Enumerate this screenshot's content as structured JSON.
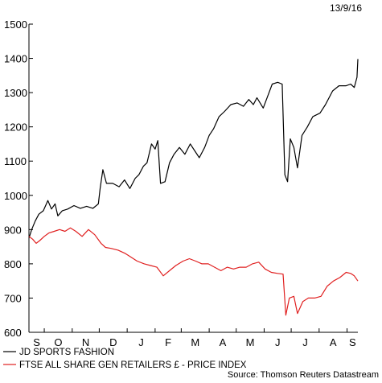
{
  "chart_data": {
    "type": "line",
    "date_label": "13/9/16",
    "source": "Source: Thomson Reuters Datastream",
    "ylim": [
      600,
      1500
    ],
    "y_ticks": [
      600,
      700,
      800,
      900,
      1000,
      1100,
      1200,
      1300,
      1400,
      1500
    ],
    "x_tick_labels": [
      "S",
      "O",
      "N",
      "D",
      "J",
      "F",
      "M",
      "A",
      "M",
      "J",
      "J",
      "A",
      "S"
    ],
    "grid": false,
    "legend_position": "bottom-left",
    "colors": {
      "series_1": "#000000",
      "series_2": "#e02020",
      "axis": "#000000"
    },
    "x_start": "2015-09-14",
    "x_end": "2016-09-13",
    "series": [
      {
        "name": "JD SPORTS FASHION",
        "points": [
          [
            "2015-09-14",
            875
          ],
          [
            "2015-09-17",
            900
          ],
          [
            "2015-09-21",
            925
          ],
          [
            "2015-09-25",
            945
          ],
          [
            "2015-09-30",
            955
          ],
          [
            "2015-10-05",
            985
          ],
          [
            "2015-10-09",
            960
          ],
          [
            "2015-10-13",
            975
          ],
          [
            "2015-10-16",
            940
          ],
          [
            "2015-10-21",
            955
          ],
          [
            "2015-10-27",
            960
          ],
          [
            "2015-11-03",
            970
          ],
          [
            "2015-11-10",
            962
          ],
          [
            "2015-11-17",
            968
          ],
          [
            "2015-11-24",
            962
          ],
          [
            "2015-11-30",
            975
          ],
          [
            "2015-12-02",
            1020
          ],
          [
            "2015-12-05",
            1075
          ],
          [
            "2015-12-09",
            1035
          ],
          [
            "2015-12-16",
            1035
          ],
          [
            "2015-12-23",
            1025
          ],
          [
            "2015-12-29",
            1045
          ],
          [
            "2016-01-04",
            1020
          ],
          [
            "2016-01-10",
            1050
          ],
          [
            "2016-01-14",
            1060
          ],
          [
            "2016-01-19",
            1085
          ],
          [
            "2016-01-23",
            1095
          ],
          [
            "2016-01-28",
            1150
          ],
          [
            "2016-02-01",
            1135
          ],
          [
            "2016-02-04",
            1160
          ],
          [
            "2016-02-07",
            1035
          ],
          [
            "2016-02-12",
            1040
          ],
          [
            "2016-02-17",
            1095
          ],
          [
            "2016-02-22",
            1120
          ],
          [
            "2016-02-28",
            1140
          ],
          [
            "2016-03-05",
            1120
          ],
          [
            "2016-03-11",
            1150
          ],
          [
            "2016-03-16",
            1130
          ],
          [
            "2016-03-21",
            1110
          ],
          [
            "2016-03-27",
            1140
          ],
          [
            "2016-04-01",
            1175
          ],
          [
            "2016-04-06",
            1195
          ],
          [
            "2016-04-12",
            1230
          ],
          [
            "2016-04-18",
            1245
          ],
          [
            "2016-04-25",
            1265
          ],
          [
            "2016-05-02",
            1270
          ],
          [
            "2016-05-09",
            1260
          ],
          [
            "2016-05-15",
            1280
          ],
          [
            "2016-05-20",
            1265
          ],
          [
            "2016-05-24",
            1285
          ],
          [
            "2016-05-31",
            1255
          ],
          [
            "2016-06-05",
            1290
          ],
          [
            "2016-06-10",
            1325
          ],
          [
            "2016-06-16",
            1330
          ],
          [
            "2016-06-21",
            1325
          ],
          [
            "2016-06-24",
            1060
          ],
          [
            "2016-06-27",
            1040
          ],
          [
            "2016-06-30",
            1165
          ],
          [
            "2016-07-04",
            1140
          ],
          [
            "2016-07-08",
            1080
          ],
          [
            "2016-07-13",
            1175
          ],
          [
            "2016-07-19",
            1200
          ],
          [
            "2016-07-25",
            1230
          ],
          [
            "2016-08-02",
            1240
          ],
          [
            "2016-08-08",
            1265
          ],
          [
            "2016-08-16",
            1305
          ],
          [
            "2016-08-23",
            1320
          ],
          [
            "2016-08-31",
            1320
          ],
          [
            "2016-09-05",
            1325
          ],
          [
            "2016-09-09",
            1315
          ],
          [
            "2016-09-12",
            1345
          ],
          [
            "2016-09-13",
            1398
          ]
        ]
      },
      {
        "name": "FTSE ALL SHARE GEN RETAILERS £ - PRICE INDEX",
        "points": [
          [
            "2015-09-14",
            880
          ],
          [
            "2015-09-18",
            872
          ],
          [
            "2015-09-22",
            860
          ],
          [
            "2015-09-26",
            868
          ],
          [
            "2015-10-01",
            880
          ],
          [
            "2015-10-06",
            890
          ],
          [
            "2015-10-12",
            895
          ],
          [
            "2015-10-18",
            900
          ],
          [
            "2015-10-24",
            895
          ],
          [
            "2015-10-30",
            905
          ],
          [
            "2015-11-05",
            895
          ],
          [
            "2015-11-12",
            880
          ],
          [
            "2015-11-19",
            900
          ],
          [
            "2015-11-26",
            885
          ],
          [
            "2015-12-03",
            860
          ],
          [
            "2015-12-08",
            848
          ],
          [
            "2015-12-14",
            845
          ],
          [
            "2015-12-22",
            840
          ],
          [
            "2015-12-30",
            830
          ],
          [
            "2016-01-05",
            820
          ],
          [
            "2016-01-12",
            808
          ],
          [
            "2016-01-20",
            800
          ],
          [
            "2016-01-27",
            795
          ],
          [
            "2016-02-03",
            790
          ],
          [
            "2016-02-10",
            765
          ],
          [
            "2016-02-17",
            780
          ],
          [
            "2016-02-24",
            795
          ],
          [
            "2016-03-03",
            808
          ],
          [
            "2016-03-10",
            815
          ],
          [
            "2016-03-17",
            808
          ],
          [
            "2016-03-24",
            800
          ],
          [
            "2016-03-31",
            800
          ],
          [
            "2016-04-07",
            790
          ],
          [
            "2016-04-14",
            780
          ],
          [
            "2016-04-21",
            790
          ],
          [
            "2016-04-28",
            785
          ],
          [
            "2016-05-05",
            790
          ],
          [
            "2016-05-12",
            790
          ],
          [
            "2016-05-19",
            800
          ],
          [
            "2016-05-26",
            805
          ],
          [
            "2016-06-02",
            785
          ],
          [
            "2016-06-09",
            775
          ],
          [
            "2016-06-16",
            772
          ],
          [
            "2016-06-22",
            770
          ],
          [
            "2016-06-25",
            650
          ],
          [
            "2016-06-29",
            700
          ],
          [
            "2016-07-04",
            705
          ],
          [
            "2016-07-08",
            655
          ],
          [
            "2016-07-14",
            690
          ],
          [
            "2016-07-20",
            700
          ],
          [
            "2016-07-27",
            700
          ],
          [
            "2016-08-03",
            705
          ],
          [
            "2016-08-10",
            735
          ],
          [
            "2016-08-17",
            750
          ],
          [
            "2016-08-24",
            760
          ],
          [
            "2016-08-31",
            775
          ],
          [
            "2016-09-05",
            772
          ],
          [
            "2016-09-09",
            765
          ],
          [
            "2016-09-13",
            750
          ]
        ]
      }
    ]
  }
}
